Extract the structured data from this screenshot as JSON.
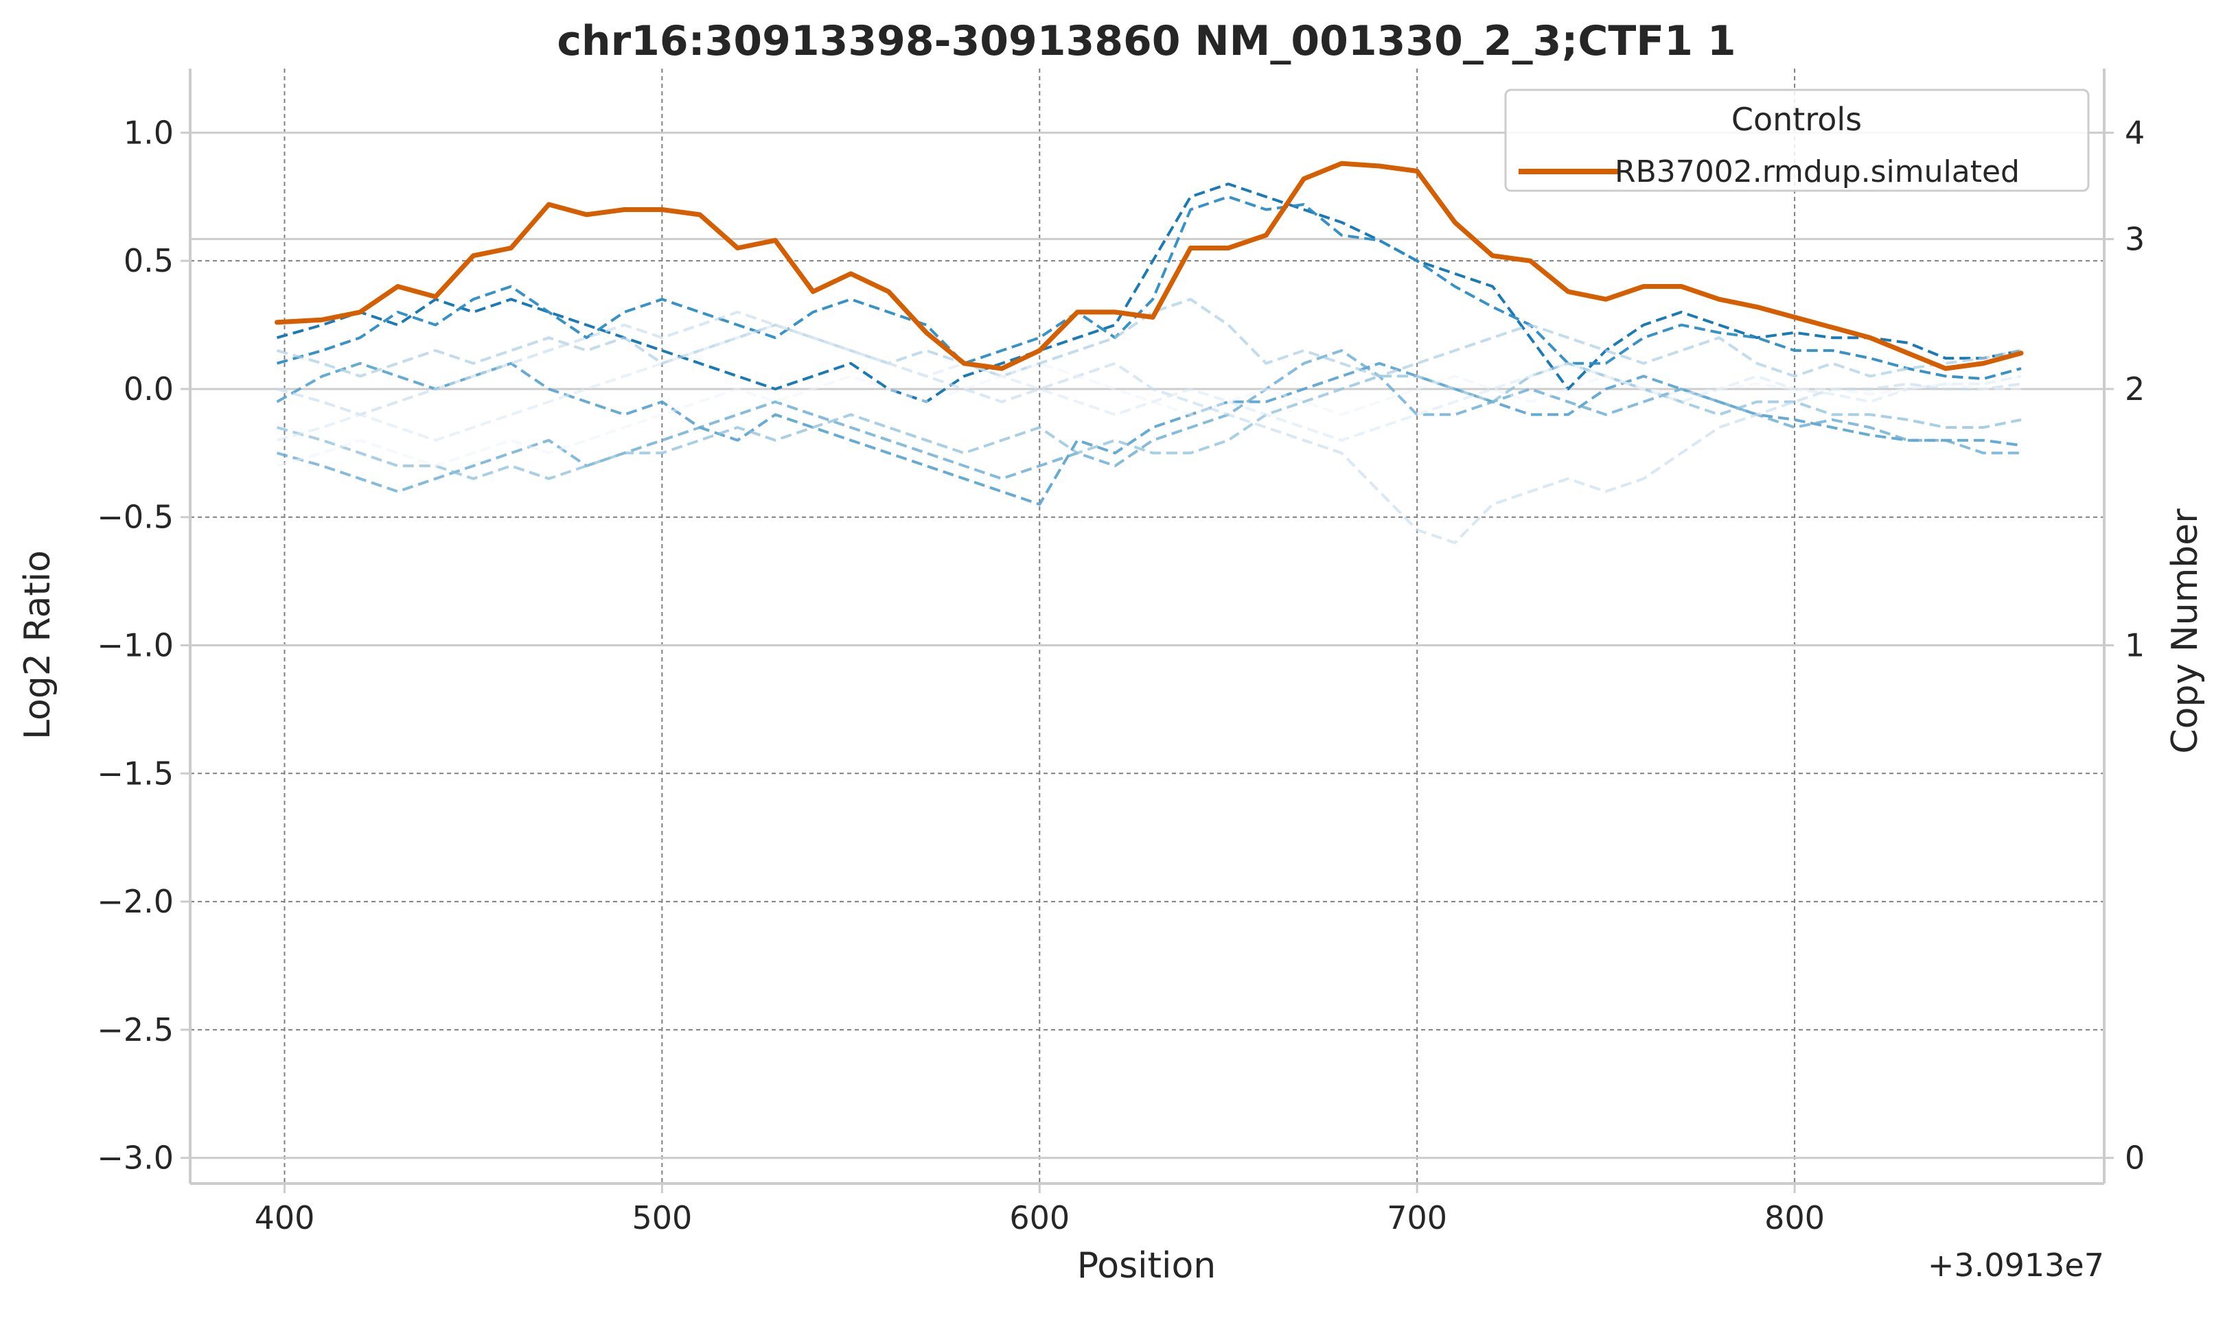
{
  "chart_data": {
    "type": "line",
    "title": "chr16:30913398-30913860 NM_001330_2_3;CTF1 1",
    "xlabel": "Position",
    "ylabel": "Log2 Ratio",
    "y2label": "Copy Number",
    "x_offset_label": "+3.0913e7",
    "xlim": [
      375,
      882
    ],
    "ylim": [
      -3.1,
      1.25
    ],
    "x_ticks": [
      400,
      500,
      600,
      700,
      800
    ],
    "x_tick_labels": [
      "400",
      "500",
      "600",
      "700",
      "800"
    ],
    "y_ticks": [
      1.0,
      0.5,
      0.0,
      -0.5,
      -1.0,
      -1.5,
      -2.0,
      -2.5,
      -3.0
    ],
    "y_tick_labels": [
      "1.0",
      "0.5",
      "0.0",
      "−0.5",
      "−1.0",
      "−1.5",
      "−2.0",
      "−2.5",
      "−3.0"
    ],
    "y2_ticks": [
      4,
      3,
      2,
      1,
      0
    ],
    "y2_tick_labels": [
      "4",
      "3",
      "2",
      "1",
      "0"
    ],
    "grid": true,
    "legend": {
      "title": "Controls",
      "placement": "top-right",
      "entries": [
        "RB37002.rmdup.simulated"
      ]
    },
    "sample_color": "#d55e00",
    "x": [
      398,
      410,
      420,
      430,
      440,
      450,
      460,
      470,
      480,
      490,
      500,
      510,
      520,
      530,
      540,
      550,
      560,
      570,
      580,
      590,
      600,
      610,
      620,
      630,
      640,
      650,
      660,
      670,
      680,
      690,
      700,
      710,
      720,
      730,
      740,
      750,
      760,
      770,
      780,
      790,
      800,
      810,
      820,
      830,
      840,
      850,
      860
    ],
    "series": [
      {
        "name": "RB37002.rmdup.simulated",
        "role": "sample",
        "values": [
          0.26,
          0.27,
          0.3,
          0.4,
          0.36,
          0.52,
          0.55,
          0.72,
          0.68,
          0.7,
          0.7,
          0.68,
          0.55,
          0.58,
          0.38,
          0.45,
          0.38,
          0.22,
          0.1,
          0.08,
          0.15,
          0.3,
          0.3,
          0.28,
          0.55,
          0.55,
          0.6,
          0.82,
          0.88,
          0.87,
          0.85,
          0.65,
          0.52,
          0.5,
          0.38,
          0.35,
          0.4,
          0.4,
          0.35,
          0.32,
          0.28,
          0.24,
          0.2,
          0.14,
          0.08,
          0.1,
          0.14
        ]
      },
      {
        "name": "",
        "role": "control",
        "color": "#1a7ab5",
        "opacity": 1.0,
        "values": [
          0.2,
          0.25,
          0.3,
          0.25,
          0.35,
          0.3,
          0.35,
          0.3,
          0.25,
          0.2,
          0.15,
          0.1,
          0.05,
          0.0,
          0.05,
          0.1,
          0.0,
          -0.05,
          0.05,
          0.1,
          0.15,
          0.2,
          0.25,
          0.5,
          0.75,
          0.8,
          0.75,
          0.7,
          0.65,
          0.58,
          0.5,
          0.45,
          0.4,
          0.2,
          0.0,
          0.15,
          0.25,
          0.3,
          0.25,
          0.2,
          0.22,
          0.2,
          0.2,
          0.18,
          0.12,
          0.12,
          0.15
        ]
      },
      {
        "name": "",
        "role": "control",
        "color": "#2b8cc4",
        "opacity": 0.95,
        "values": [
          0.1,
          0.15,
          0.2,
          0.3,
          0.25,
          0.35,
          0.4,
          0.3,
          0.2,
          0.3,
          0.35,
          0.3,
          0.25,
          0.2,
          0.3,
          0.35,
          0.3,
          0.25,
          0.1,
          0.15,
          0.2,
          0.3,
          0.2,
          0.35,
          0.7,
          0.75,
          0.7,
          0.72,
          0.6,
          0.58,
          0.5,
          0.4,
          0.32,
          0.25,
          0.1,
          0.1,
          0.2,
          0.25,
          0.22,
          0.2,
          0.15,
          0.15,
          0.12,
          0.08,
          0.05,
          0.04,
          0.08
        ]
      },
      {
        "name": "",
        "role": "control",
        "color": "#4a9ccc",
        "opacity": 0.85,
        "values": [
          -0.05,
          0.05,
          0.1,
          0.05,
          0.0,
          0.05,
          0.1,
          0.0,
          -0.05,
          -0.1,
          -0.05,
          -0.15,
          -0.2,
          -0.1,
          -0.15,
          -0.2,
          -0.25,
          -0.3,
          -0.35,
          -0.4,
          -0.45,
          -0.2,
          -0.25,
          -0.15,
          -0.1,
          -0.05,
          -0.05,
          0.0,
          0.05,
          0.1,
          0.05,
          0.0,
          -0.05,
          -0.1,
          -0.1,
          0.0,
          0.05,
          0.0,
          -0.05,
          -0.1,
          -0.12,
          -0.15,
          -0.18,
          -0.2,
          -0.2,
          -0.2,
          -0.22
        ]
      },
      {
        "name": "",
        "role": "control",
        "color": "#66aad2",
        "opacity": 0.8,
        "values": [
          -0.25,
          -0.3,
          -0.35,
          -0.4,
          -0.35,
          -0.3,
          -0.25,
          -0.2,
          -0.3,
          -0.25,
          -0.2,
          -0.15,
          -0.1,
          -0.05,
          -0.1,
          -0.15,
          -0.2,
          -0.25,
          -0.3,
          -0.35,
          -0.3,
          -0.25,
          -0.3,
          -0.2,
          -0.15,
          -0.1,
          0.0,
          0.1,
          0.15,
          0.05,
          -0.1,
          -0.1,
          -0.05,
          0.0,
          -0.05,
          -0.1,
          -0.05,
          0.0,
          -0.05,
          -0.1,
          -0.15,
          -0.12,
          -0.15,
          -0.2,
          -0.2,
          -0.25,
          -0.25
        ]
      },
      {
        "name": "",
        "role": "control",
        "color": "#8cbfdc",
        "opacity": 0.75,
        "values": [
          -0.15,
          -0.2,
          -0.25,
          -0.3,
          -0.3,
          -0.35,
          -0.3,
          -0.35,
          -0.3,
          -0.25,
          -0.25,
          -0.2,
          -0.15,
          -0.2,
          -0.15,
          -0.1,
          -0.15,
          -0.2,
          -0.25,
          -0.2,
          -0.15,
          -0.25,
          -0.2,
          -0.25,
          -0.25,
          -0.2,
          -0.1,
          -0.05,
          0.0,
          0.05,
          0.05,
          0.0,
          -0.05,
          0.05,
          0.1,
          0.05,
          0.0,
          -0.05,
          -0.1,
          -0.05,
          -0.05,
          -0.1,
          -0.1,
          -0.12,
          -0.15,
          -0.15,
          -0.12
        ]
      },
      {
        "name": "",
        "role": "control",
        "color": "#a9cde3",
        "opacity": 0.7,
        "values": [
          0.15,
          0.1,
          0.05,
          0.1,
          0.15,
          0.1,
          0.15,
          0.2,
          0.15,
          0.2,
          0.1,
          0.15,
          0.2,
          0.25,
          0.2,
          0.15,
          0.1,
          0.15,
          0.1,
          0.05,
          0.1,
          0.15,
          0.2,
          0.3,
          0.35,
          0.25,
          0.1,
          0.15,
          0.1,
          0.05,
          0.1,
          0.15,
          0.2,
          0.25,
          0.2,
          0.15,
          0.1,
          0.15,
          0.2,
          0.1,
          0.05,
          0.1,
          0.05,
          0.08,
          0.1,
          0.12,
          0.15
        ]
      },
      {
        "name": "",
        "role": "control",
        "color": "#c6dcec",
        "opacity": 0.65,
        "values": [
          0.0,
          -0.05,
          -0.1,
          -0.05,
          0.0,
          0.05,
          0.1,
          0.15,
          0.2,
          0.25,
          0.2,
          0.25,
          0.3,
          0.25,
          0.2,
          0.15,
          0.1,
          0.05,
          0.0,
          -0.05,
          0.0,
          0.05,
          0.1,
          0.0,
          -0.05,
          -0.1,
          -0.15,
          -0.2,
          -0.25,
          -0.4,
          -0.55,
          -0.6,
          -0.45,
          -0.4,
          -0.35,
          -0.4,
          -0.35,
          -0.25,
          -0.15,
          -0.1,
          -0.05,
          0.0,
          0.0,
          0.02,
          0.0,
          0.0,
          0.02
        ]
      },
      {
        "name": "",
        "role": "control",
        "color": "#dbe9f3",
        "opacity": 0.6,
        "values": [
          -0.2,
          -0.15,
          -0.1,
          -0.15,
          -0.2,
          -0.15,
          -0.1,
          -0.05,
          0.0,
          0.05,
          0.1,
          0.15,
          0.2,
          0.25,
          0.2,
          0.15,
          0.1,
          0.05,
          0.1,
          0.05,
          0.0,
          -0.05,
          -0.1,
          -0.05,
          0.0,
          -0.05,
          -0.1,
          -0.15,
          -0.2,
          -0.15,
          -0.1,
          -0.05,
          0.0,
          0.05,
          0.1,
          0.05,
          0.0,
          -0.05,
          0.0,
          0.05,
          0.0,
          -0.02,
          -0.05,
          0.0,
          0.02,
          0.02,
          0.05
        ]
      },
      {
        "name": "",
        "role": "control",
        "color": "#ecf3f9",
        "opacity": 0.55,
        "values": [
          -0.3,
          -0.25,
          -0.2,
          -0.25,
          -0.3,
          -0.25,
          -0.2,
          -0.25,
          -0.2,
          -0.15,
          -0.1,
          -0.05,
          0.0,
          -0.05,
          0.0,
          0.05,
          0.0,
          -0.05,
          0.0,
          0.05,
          0.1,
          0.05,
          0.0,
          -0.05,
          -0.1,
          -0.05,
          0.0,
          -0.05,
          -0.1,
          -0.05,
          0.0,
          0.05,
          0.0,
          -0.05,
          0.0,
          0.05,
          0.0,
          -0.02,
          0.0,
          0.02,
          0.0,
          0.0,
          -0.02,
          0.0,
          0.02,
          0.0,
          0.0
        ]
      }
    ]
  }
}
